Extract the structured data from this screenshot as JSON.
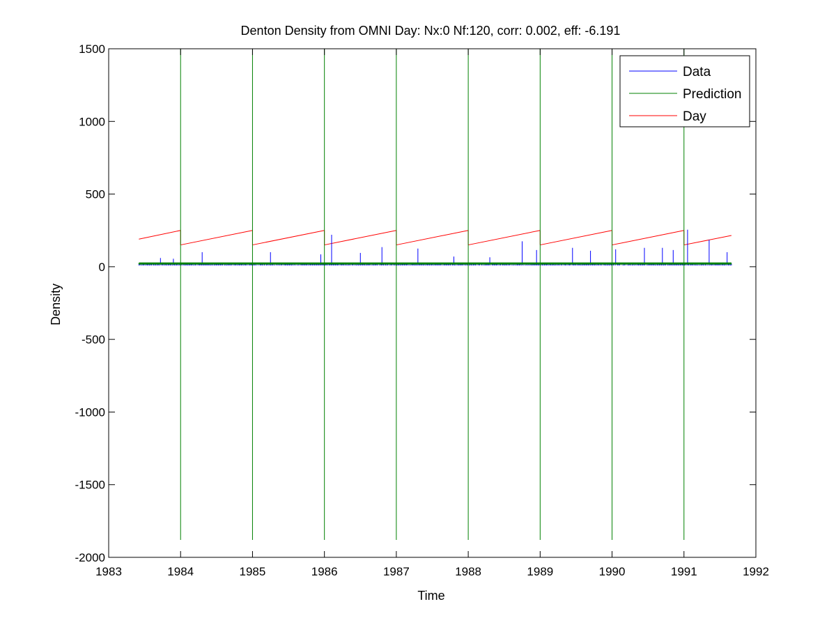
{
  "chart_data": {
    "type": "line",
    "title": "Denton Density from OMNI Day: Nx:0 Nf:120, corr: 0.002, eff: -6.191",
    "xlabel": "Time",
    "ylabel": "Density",
    "xlim": [
      1983,
      1992
    ],
    "ylim": [
      -2000,
      1500
    ],
    "xticks": [
      1983,
      1984,
      1985,
      1986,
      1987,
      1988,
      1989,
      1990,
      1991,
      1992
    ],
    "yticks": [
      -2000,
      -1500,
      -1000,
      -500,
      0,
      500,
      1000,
      1500
    ],
    "x_range": [
      1983.42,
      1991.66
    ],
    "grid": false,
    "legend": {
      "position": "top-right"
    },
    "series": [
      {
        "name": "Data",
        "color": "#0000ff",
        "baseline": 15,
        "spikes": [
          [
            1983.72,
            60
          ],
          [
            1983.9,
            55
          ],
          [
            1984.3,
            100
          ],
          [
            1985.25,
            100
          ],
          [
            1985.95,
            85
          ],
          [
            1986.1,
            220
          ],
          [
            1986.5,
            95
          ],
          [
            1986.8,
            135
          ],
          [
            1987.3,
            125
          ],
          [
            1987.8,
            70
          ],
          [
            1988.3,
            65
          ],
          [
            1988.75,
            175
          ],
          [
            1988.95,
            115
          ],
          [
            1989.45,
            130
          ],
          [
            1989.7,
            110
          ],
          [
            1990.05,
            120
          ],
          [
            1990.45,
            130
          ],
          [
            1990.7,
            130
          ],
          [
            1990.85,
            115
          ],
          [
            1991.05,
            255
          ],
          [
            1991.35,
            185
          ],
          [
            1991.6,
            100
          ]
        ]
      },
      {
        "name": "Prediction",
        "color": "#008000",
        "baseline": 22,
        "spikes_at_year_starts": [
          [
            1984,
            1500,
            -1880
          ],
          [
            1985,
            1500,
            -1880
          ],
          [
            1986,
            1500,
            -1880
          ],
          [
            1987,
            1500,
            -1880
          ],
          [
            1988,
            1500,
            -1880
          ],
          [
            1989,
            1500,
            -1880
          ],
          [
            1990,
            1500,
            -1880
          ],
          [
            1991,
            1500,
            -1880
          ]
        ]
      },
      {
        "name": "Day",
        "color": "#ff0000",
        "segments": [
          {
            "x": [
              1983.42,
              1984.0
            ],
            "y": [
              190,
              250
            ]
          },
          {
            "x": [
              1984.0,
              1985.0
            ],
            "y": [
              150,
              250
            ]
          },
          {
            "x": [
              1985.0,
              1986.0
            ],
            "y": [
              150,
              250
            ]
          },
          {
            "x": [
              1986.0,
              1987.0
            ],
            "y": [
              150,
              250
            ]
          },
          {
            "x": [
              1987.0,
              1988.0
            ],
            "y": [
              150,
              250
            ]
          },
          {
            "x": [
              1988.0,
              1989.0
            ],
            "y": [
              150,
              250
            ]
          },
          {
            "x": [
              1989.0,
              1990.0
            ],
            "y": [
              150,
              250
            ]
          },
          {
            "x": [
              1990.0,
              1991.0
            ],
            "y": [
              150,
              250
            ]
          },
          {
            "x": [
              1991.0,
              1991.66
            ],
            "y": [
              150,
              215
            ]
          }
        ]
      }
    ]
  }
}
